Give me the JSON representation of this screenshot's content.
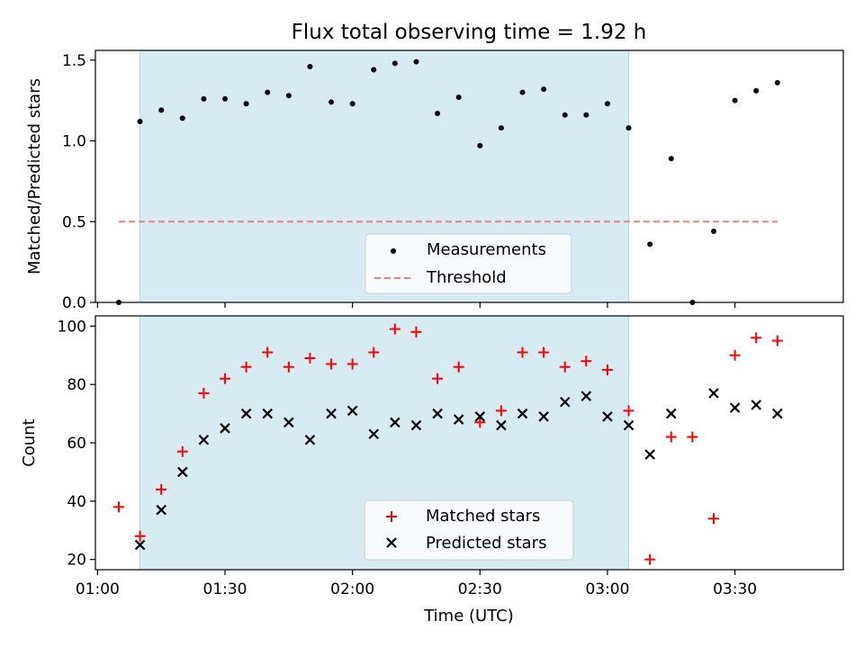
{
  "title": "Flux total observing time = 1.92 h",
  "colors": {
    "span": "#add8e6",
    "measurement": "#000000",
    "threshold": "#f08080",
    "matched": "#ff0000",
    "predicted": "#000000"
  },
  "chart_data": [
    {
      "type": "scatter",
      "panel": "top",
      "ylabel": "Matched/Predicted stars",
      "ylim": [
        0,
        1.56
      ],
      "yticks": [
        0,
        0.5,
        1.0,
        1.5
      ],
      "ytick_labels": [
        "0.0",
        "0.5",
        "1.0",
        "1.5"
      ],
      "xlim": [
        "00:59:30",
        "03:55:30"
      ],
      "shaded_span": [
        "01:10",
        "03:05"
      ],
      "legend_position": "lower center",
      "series": [
        {
          "name": "Measurements",
          "marker": "dot",
          "x": [
            "01:05",
            "01:10",
            "01:15",
            "01:20",
            "01:25",
            "01:30",
            "01:35",
            "01:40",
            "01:45",
            "01:50",
            "01:55",
            "02:00",
            "02:05",
            "02:10",
            "02:15",
            "02:20",
            "02:25",
            "02:30",
            "02:35",
            "02:40",
            "02:45",
            "02:50",
            "02:55",
            "03:00",
            "03:05",
            "03:10",
            "03:15",
            "03:20",
            "03:25",
            "03:30",
            "03:35",
            "03:40"
          ],
          "y": [
            0.0,
            1.12,
            1.19,
            1.14,
            1.26,
            1.26,
            1.23,
            1.3,
            1.28,
            1.46,
            1.24,
            1.23,
            1.44,
            1.48,
            1.49,
            1.17,
            1.27,
            0.97,
            1.08,
            1.3,
            1.32,
            1.16,
            1.16,
            1.23,
            1.08,
            0.36,
            0.89,
            0.0,
            0.44,
            1.25,
            1.31,
            1.36
          ]
        },
        {
          "name": "Threshold",
          "marker": "dashed-line",
          "x": [
            "01:05",
            "03:40"
          ],
          "y": [
            0.5,
            0.5
          ]
        }
      ]
    },
    {
      "type": "scatter",
      "panel": "bottom",
      "xlabel": "Time (UTC)",
      "ylabel": "Count",
      "ylim": [
        16.5,
        103.5
      ],
      "yticks": [
        20,
        40,
        60,
        80,
        100
      ],
      "ytick_labels": [
        "20",
        "40",
        "60",
        "80",
        "100"
      ],
      "xlim": [
        "00:59:30",
        "03:55:30"
      ],
      "xticks": [
        "01:00",
        "01:30",
        "02:00",
        "02:30",
        "03:00",
        "03:30"
      ],
      "shaded_span": [
        "01:10",
        "03:05"
      ],
      "legend_position": "lower center",
      "series": [
        {
          "name": "Matched stars",
          "marker": "plus",
          "x": [
            "01:05",
            "01:10",
            "01:15",
            "01:20",
            "01:25",
            "01:30",
            "01:35",
            "01:40",
            "01:45",
            "01:50",
            "01:55",
            "02:00",
            "02:05",
            "02:10",
            "02:15",
            "02:20",
            "02:25",
            "02:30",
            "02:35",
            "02:40",
            "02:45",
            "02:50",
            "02:55",
            "03:00",
            "03:05",
            "03:10",
            "03:15",
            "03:20",
            "03:25",
            "03:30",
            "03:35",
            "03:40"
          ],
          "y": [
            38,
            28,
            44,
            57,
            77,
            82,
            86,
            91,
            86,
            89,
            87,
            87,
            91,
            99,
            98,
            82,
            86,
            67,
            71,
            91,
            91,
            86,
            88,
            85,
            71,
            20,
            62,
            62,
            34,
            90,
            96,
            95
          ]
        },
        {
          "name": "Predicted stars",
          "marker": "x",
          "x": [
            "01:10",
            "01:15",
            "01:20",
            "01:25",
            "01:30",
            "01:35",
            "01:40",
            "01:45",
            "01:50",
            "01:55",
            "02:00",
            "02:05",
            "02:10",
            "02:15",
            "02:20",
            "02:25",
            "02:30",
            "02:35",
            "02:40",
            "02:45",
            "02:50",
            "02:55",
            "03:00",
            "03:05",
            "03:10",
            "03:15",
            "03:25",
            "03:30",
            "03:35",
            "03:40"
          ],
          "y": [
            25,
            37,
            50,
            61,
            65,
            70,
            70,
            67,
            61,
            70,
            71,
            63,
            67,
            66,
            70,
            68,
            69,
            66,
            70,
            69,
            74,
            76,
            69,
            66,
            56,
            70,
            77,
            72,
            73,
            70
          ]
        }
      ]
    }
  ]
}
